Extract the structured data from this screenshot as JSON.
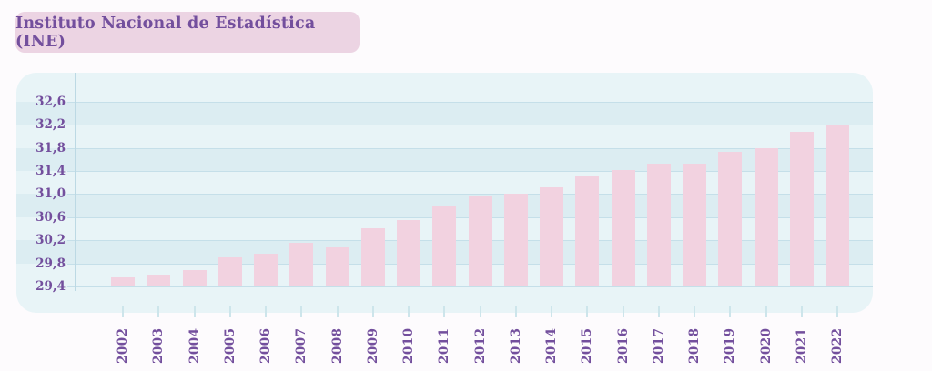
{
  "header": {
    "badge_label": "Instituto Nacional de Estadística (INE)"
  },
  "chart_data": {
    "type": "bar",
    "title": "Instituto Nacional de Estadística (INE)",
    "xlabel": "",
    "ylabel": "",
    "categories": [
      "2002",
      "2003",
      "2004",
      "2005",
      "2006",
      "2007",
      "2008",
      "2009",
      "2010",
      "2011",
      "2012",
      "2013",
      "2014",
      "2015",
      "2016",
      "2017",
      "2018",
      "2019",
      "2020",
      "2021",
      "2022"
    ],
    "values": [
      29.55,
      29.61,
      29.68,
      29.9,
      29.97,
      30.15,
      30.07,
      30.41,
      30.55,
      30.8,
      30.96,
      31.0,
      31.12,
      31.31,
      31.42,
      31.53,
      31.53,
      31.73,
      31.8,
      32.07,
      32.21
    ],
    "ylim": [
      29.4,
      33.1
    ],
    "yticks": {
      "values": [
        29.4,
        29.8,
        30.2,
        30.6,
        31.0,
        31.4,
        31.8,
        32.2,
        32.6
      ],
      "labels": [
        "29,4",
        "29,8",
        "30,2",
        "30,6",
        "31,0",
        "31,4",
        "31,8",
        "32,2",
        "32,6"
      ]
    },
    "grid": "horizontal gridlines with alternating shaded bands",
    "legend": "none",
    "decimal_separator": ","
  },
  "colors": {
    "page_bg": "#fdfbfd",
    "badge_bg": "#ecd4e3",
    "text_purple": "#734f9d",
    "panel_bg": "#e8f4f7",
    "band": "#dcedf2",
    "gridline": "#c5dfe9",
    "axis_line": "#bcd9e4",
    "bar": "#f2d2e0",
    "tick": "#cde5eb"
  }
}
